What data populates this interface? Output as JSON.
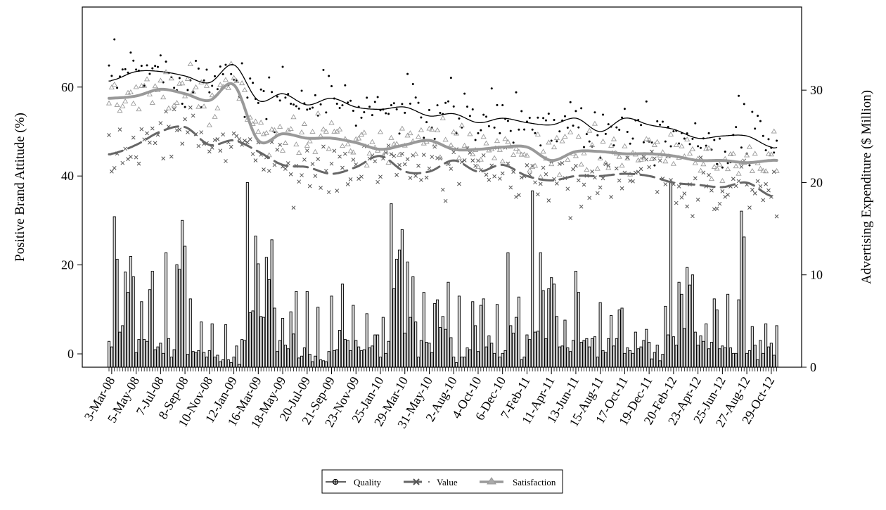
{
  "chart_data": {
    "type": "bar+line+scatter",
    "title": "",
    "ylabel_left": "Positive Brand Attitude (%)",
    "ylabel_right": "Advertising Expenditure ($ Million)",
    "ylim_left": [
      -3,
      78
    ],
    "ylim_right": [
      0,
      39
    ],
    "yticks_left": [
      "0",
      "20",
      "40",
      "60"
    ],
    "yticks_right": [
      "0",
      "10",
      "20",
      "30"
    ],
    "x_tick_labels": [
      "3-Mar-08",
      "5-May-08",
      "7-Jul-08",
      "8-Sep-08",
      "10-Nov-08",
      "12-Jan-09",
      "16-Mar-09",
      "18-May-09",
      "20-Jul-09",
      "21-Sep-09",
      "23-Nov-09",
      "25-Jan-10",
      "29-Mar-10",
      "31-May-10",
      "2-Aug-10",
      "4-Oct-10",
      "6-Dec-10",
      "7-Feb-11",
      "11-Apr-11",
      "13-Jun-11",
      "15-Aug-11",
      "17-Oct-11",
      "19-Dec-11",
      "20-Feb-12",
      "23-Apr-12",
      "25-Jun-12",
      "27-Aug-12",
      "29-Oct-12"
    ],
    "grid": false,
    "legend": {
      "placement": "bottom",
      "entries": [
        "Quality",
        "Value",
        "Satisfaction"
      ]
    },
    "colors": {
      "quality": "#000000",
      "value": "#666666",
      "satisfaction": "#999999",
      "bars": "#d9d9d9"
    },
    "trend_series": [
      {
        "name": "Quality",
        "values": [
          61.5,
          63.5,
          63.5,
          62.5,
          61,
          65,
          57,
          58.5,
          56,
          57.5,
          55.5,
          55,
          55.5,
          53.5,
          54,
          52,
          53,
          52,
          51.5,
          53,
          50,
          53,
          51.5,
          50.5,
          48.5,
          49,
          49,
          46.5
        ]
      },
      {
        "name": "Value",
        "values": [
          45,
          47,
          50,
          51,
          47,
          48,
          45.5,
          42.5,
          42,
          40.5,
          42,
          44.5,
          41,
          41,
          43.5,
          41,
          42.5,
          40,
          39,
          40,
          40,
          40.5,
          40,
          38.5,
          38,
          37.5,
          38.5,
          35.5
        ]
      },
      {
        "name": "Satisfaction",
        "values": [
          57.5,
          58,
          59.5,
          58.5,
          57,
          60.5,
          48,
          49.5,
          48.5,
          48.5,
          47.5,
          46,
          47,
          48,
          46,
          46,
          46.5,
          46.5,
          43.5,
          45.5,
          45.5,
          45,
          45,
          44.5,
          43.5,
          43.5,
          43,
          43.5
        ]
      }
    ],
    "bar_series": {
      "name": "Advertising Expenditure ($ Million), weekly",
      "values": [
        2.8,
        2.2,
        16.3,
        11.7,
        3.8,
        4.5,
        10.3,
        8.1,
        12.0,
        9.8,
        1.6,
        3.0,
        7.1,
        3.0,
        2.8,
        8.4,
        10.4,
        1.9,
        2.2,
        2.6,
        1.5,
        12.4,
        3.1,
        1.1,
        1.9,
        11.1,
        10.6,
        15.9,
        13.1,
        1.4,
        7.4,
        1.7,
        1.6,
        1.8,
        4.9,
        1.6,
        1.1,
        1.8,
        4.7,
        1.1,
        1.3,
        0.6,
        0.8,
        4.6,
        0.8,
        0.5,
        1.1,
        2.3,
        0.3,
        3.0,
        2.9,
        20.0,
        5.9,
        6.1,
        14.2,
        11.2,
        5.5,
        5.4,
        11.9,
        9.5,
        13.8,
        6.4,
        1.7,
        2.9,
        5.3,
        2.4,
        2.0,
        6.0,
        3.6,
        8.2,
        1.0,
        1.2,
        2.1,
        8.2,
        1.4,
        0.6,
        1.2,
        6.5,
        0.8,
        0.7,
        0.6,
        1.7,
        7.7,
        1.8,
        1.9,
        4.0,
        9.0,
        3.0,
        2.9,
        1.8,
        6.7,
        2.9,
        2.2,
        1.8,
        1.9,
        5.8,
        2.1,
        2.3,
        3.5,
        3.5,
        1.1,
        5.4,
        1.5,
        2.8,
        17.7,
        8.5,
        11.7,
        12.7,
        14.9,
        3.7,
        11.4,
        5.4,
        9.8,
        4.9,
        1.1,
        2.9,
        8.1,
        2.7,
        2.6,
        1.6,
        6.9,
        7.3,
        4.3,
        5.5,
        4.1,
        9.2,
        3.2,
        1.1,
        0.5,
        7.7,
        1.1,
        1.1,
        2.1,
        1.9,
        7.1,
        4.5,
        1.7,
        6.7,
        7.4,
        2.2,
        3.4,
        2.6,
        1.5,
        6.8,
        1.1,
        1.5,
        1.8,
        12.4,
        4.5,
        3.7,
        5.4,
        7.6,
        0.8,
        1.1,
        3.5,
        3.0,
        19.1,
        3.8,
        3.9,
        12.4,
        8.3,
        3.1,
        8.5,
        9.7,
        9.0,
        5.5,
        2.2,
        2.3,
        5.1,
        2.1,
        1.7,
        2.9,
        10.4,
        8.1,
        2.7,
        2.9,
        3.1,
        2.2,
        3.1,
        3.3,
        1.1,
        7.0,
        1.8,
        1.6,
        3.1,
        5.6,
        2.3,
        3.1,
        6.2,
        6.4,
        1.5,
        2.1,
        1.8,
        1.5,
        3.8,
        2.0,
        2.2,
        2.9,
        4.1,
        2.7,
        0.9,
        1.6,
        2.4,
        0.7,
        1.4,
        6.6,
        3.5,
        20.1,
        3.3,
        2.4,
        9.2,
        7.9,
        4.2,
        10.8,
        8.9,
        10.0,
        3.8,
        2.4,
        3.4,
        2.8,
        4.7,
        2.0,
        2.7,
        7.4,
        6.2,
        2.0,
        2.3,
        2.1,
        7.9,
        2.1,
        1.5,
        1.5,
        7.3,
        16.9,
        14.1,
        1.5,
        1.8,
        4.4,
        2.4,
        0.8,
        2.9,
        1.5,
        4.7,
        2.2,
        2.6,
        1.3,
        4.5
      ]
    },
    "scatter_noise_sd": {
      "Quality": 3.2,
      "Value": 3.0,
      "Satisfaction": 2.6
    }
  }
}
